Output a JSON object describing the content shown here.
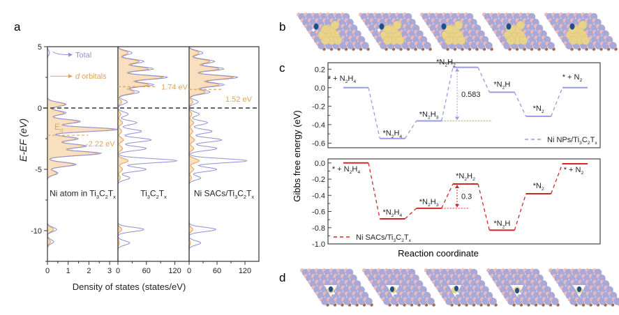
{
  "panel_labels": {
    "a": "a",
    "b": "b",
    "c": "c",
    "d": "d"
  },
  "colors": {
    "total": "#8f8fd6",
    "d_orbitals": "#e0a35a",
    "d_fill": "#f8dfc0",
    "ni_nps": "#9a9ae0",
    "ni_sacs": "#d02828",
    "fermi": "#333333",
    "axis": "#333333",
    "metal_blue": "#a9a9d8",
    "metal_pink": "#f0b9b9",
    "carbon": "#a86a44",
    "cluster": "#e8d38a",
    "nitrogen": "#1f4e8c"
  },
  "chart_data": [
    {
      "id": "a",
      "type": "area",
      "title": "",
      "ylabel": "E-E_F (eV)",
      "xlabel": "Density of states (states/eV)",
      "ylim": [
        -12.5,
        5
      ],
      "yticks": [
        5,
        0,
        -5,
        -10
      ],
      "yticks_minor": [
        2.5,
        -2.5,
        -7.5,
        -12.5
      ],
      "fermi_level": 0,
      "legend": [
        {
          "label": "Total",
          "style": "solid",
          "color_key": "total"
        },
        {
          "label": "d orbitals",
          "style": "filled",
          "color_key": "d_orbitals"
        }
      ],
      "subpanels": [
        {
          "name": "Ni atom in Ti3C2Tx",
          "label_main": "Ni atom in Ti",
          "label_parts": [
            "Ni atom in Ti",
            "3",
            "C",
            "2",
            "T",
            "x"
          ],
          "xlim": [
            0,
            3.4
          ],
          "xticks": [
            0,
            1,
            2,
            3
          ],
          "d_band_center": -2.22,
          "d_band_label": "-2.22 eV",
          "ed_label": "E",
          "ed_sub": "d",
          "total_peaks": [
            [
              4.5,
              0.1
            ],
            [
              0.3,
              0.9
            ],
            [
              -0.4,
              0.9
            ],
            [
              -1.1,
              1.6
            ],
            [
              -1.75,
              3.4
            ],
            [
              -2.5,
              1.5
            ],
            [
              -3.1,
              1.9
            ],
            [
              -3.7,
              2.6
            ],
            [
              -4.6,
              1.4
            ],
            [
              -5.3,
              0.5
            ],
            [
              -9.9,
              0.45
            ],
            [
              -10.9,
              0.3
            ]
          ],
          "d_peaks": [
            [
              0.3,
              0.85
            ],
            [
              -0.4,
              0.8
            ],
            [
              -1.1,
              1.5
            ],
            [
              -1.75,
              3.25
            ],
            [
              -2.5,
              1.4
            ],
            [
              -3.1,
              1.8
            ],
            [
              -3.7,
              2.45
            ],
            [
              -4.6,
              1.3
            ],
            [
              -5.3,
              0.45
            ],
            [
              -9.9,
              0.3
            ],
            [
              -10.9,
              0.15
            ]
          ]
        },
        {
          "name": "Ti3C2Tx",
          "label_parts": [
            "Ti",
            "3",
            "C",
            "2",
            "T",
            "x"
          ],
          "xlim": [
            0,
            150
          ],
          "xticks": [
            0,
            60,
            120
          ],
          "d_band_center": 1.74,
          "d_band_label": "1.74 eV",
          "total_peaks": [
            [
              4.5,
              30
            ],
            [
              3.8,
              55
            ],
            [
              3.2,
              75
            ],
            [
              2.5,
              105
            ],
            [
              1.9,
              75
            ],
            [
              1.3,
              45
            ],
            [
              0.5,
              20
            ],
            [
              -0.5,
              22
            ],
            [
              -1.2,
              40
            ],
            [
              -1.9,
              50
            ],
            [
              -2.6,
              70
            ],
            [
              -3.3,
              60
            ],
            [
              -4.3,
              125
            ],
            [
              -5.0,
              60
            ],
            [
              -5.7,
              25
            ],
            [
              -9.9,
              55
            ],
            [
              -11.0,
              25
            ]
          ],
          "d_peaks": [
            [
              4.5,
              22
            ],
            [
              3.8,
              45
            ],
            [
              3.2,
              65
            ],
            [
              2.5,
              95
            ],
            [
              1.9,
              65
            ],
            [
              1.3,
              35
            ],
            [
              0.5,
              8
            ],
            [
              -0.5,
              6
            ],
            [
              -1.2,
              10
            ],
            [
              -1.9,
              8
            ],
            [
              -2.6,
              12
            ],
            [
              -3.3,
              10
            ],
            [
              -4.3,
              22
            ],
            [
              -5.0,
              10
            ],
            [
              -5.7,
              5
            ],
            [
              -9.9,
              8
            ],
            [
              -11.0,
              3
            ]
          ]
        },
        {
          "name": "Ni SACs/Ti3C2Tx",
          "label_parts": [
            "Ni SACs/Ti",
            "3",
            "C",
            "2",
            "T",
            "x"
          ],
          "xlim": [
            0,
            150
          ],
          "xticks": [
            0,
            60,
            120
          ],
          "d_band_center": 1.52,
          "d_band_label": "1.52 eV",
          "total_peaks": [
            [
              4.5,
              30
            ],
            [
              3.8,
              55
            ],
            [
              3.2,
              75
            ],
            [
              2.5,
              105
            ],
            [
              1.9,
              75
            ],
            [
              1.3,
              45
            ],
            [
              0.5,
              20
            ],
            [
              -0.5,
              22
            ],
            [
              -1.2,
              40
            ],
            [
              -1.9,
              50
            ],
            [
              -2.6,
              70
            ],
            [
              -3.3,
              60
            ],
            [
              -4.3,
              125
            ],
            [
              -5.0,
              60
            ],
            [
              -5.7,
              25
            ],
            [
              -9.9,
              58
            ],
            [
              -11.0,
              25
            ]
          ],
          "d_peaks": [
            [
              4.5,
              22
            ],
            [
              3.8,
              45
            ],
            [
              3.2,
              65
            ],
            [
              2.5,
              95
            ],
            [
              1.9,
              65
            ],
            [
              1.3,
              35
            ],
            [
              0.5,
              8
            ],
            [
              -0.5,
              6
            ],
            [
              -1.2,
              10
            ],
            [
              -1.9,
              8
            ],
            [
              -2.6,
              12
            ],
            [
              -3.3,
              10
            ],
            [
              -4.3,
              22
            ],
            [
              -5.0,
              10
            ],
            [
              -5.7,
              5
            ],
            [
              -9.9,
              8
            ],
            [
              -11.0,
              3
            ]
          ]
        }
      ]
    },
    {
      "id": "c-top",
      "type": "line",
      "series_name": "Ni NPs/Ti3C2Tx",
      "legend_parts": [
        "Ni NPs/Ti",
        "3",
        "C",
        "2",
        "T",
        "x"
      ],
      "legend_position": "bottom-right",
      "ylim": [
        -0.65,
        0.27
      ],
      "yticks": [
        0.2,
        0.0,
        -0.2,
        -0.4,
        -0.6
      ],
      "ytick_labels": [
        "0.2",
        "0.0",
        "-0.2",
        "-0.4",
        "-0.6"
      ],
      "steps": [
        {
          "species": "* + N2H4",
          "label_parts": [
            "* + N",
            "2",
            "H",
            "4"
          ],
          "value": 0.0
        },
        {
          "species": "*N2H4",
          "label_parts": [
            "*N",
            "2",
            "H",
            "4"
          ],
          "value": -0.55
        },
        {
          "species": "*N2H3",
          "label_parts": [
            "*N",
            "2",
            "H",
            "3"
          ],
          "value": -0.36
        },
        {
          "species": "*N2H2",
          "label_parts": [
            "*N",
            "2",
            "H",
            "2"
          ],
          "value": 0.22
        },
        {
          "species": "*N2H",
          "label_parts": [
            "*N",
            "2",
            "H"
          ],
          "value": -0.05
        },
        {
          "species": "*N2",
          "label_parts": [
            "*N",
            "2"
          ],
          "value": -0.31
        },
        {
          "species": "* + N2",
          "label_parts": [
            "* + N",
            "2"
          ],
          "value": 0.0
        }
      ],
      "barrier": {
        "value": 0.583,
        "label": "0.583",
        "from_step": 2,
        "to_step": 3
      }
    },
    {
      "id": "c-bottom",
      "type": "line",
      "series_name": "Ni SACs/Ti3C2Tx",
      "legend_parts": [
        "Ni SACs/Ti",
        "3",
        "C",
        "2",
        "T",
        "x"
      ],
      "legend_position": "bottom-left",
      "ylim": [
        -1.0,
        0.05
      ],
      "yticks": [
        0.0,
        -0.2,
        -0.4,
        -0.6,
        -0.8,
        -1.0
      ],
      "ytick_labels": [
        "0.0",
        "-0.2",
        "-0.4",
        "-0.6",
        "-0.8",
        "-1.0"
      ],
      "steps": [
        {
          "species": "* + N2H4",
          "label_parts": [
            "* + N",
            "2",
            "H",
            "4"
          ],
          "value": 0.0
        },
        {
          "species": "*N2H4",
          "label_parts": [
            "*N",
            "2",
            "H",
            "4"
          ],
          "value": -0.69
        },
        {
          "species": "*N2H3",
          "label_parts": [
            "*N",
            "2",
            "H",
            "3"
          ],
          "value": -0.56
        },
        {
          "species": "*N2H2",
          "label_parts": [
            "*N",
            "2",
            "H",
            "2"
          ],
          "value": -0.26
        },
        {
          "species": "*N2H",
          "label_parts": [
            "*N",
            "2",
            "H"
          ],
          "value": -0.83
        },
        {
          "species": "*N2",
          "label_parts": [
            "*N",
            "2"
          ],
          "value": -0.38
        },
        {
          "species": "* + N2",
          "label_parts": [
            "* + N",
            "2"
          ],
          "value": -0.01
        }
      ],
      "barrier": {
        "value": 0.3,
        "label": "0.3",
        "from_step": 2,
        "to_step": 3
      }
    }
  ],
  "panel_c": {
    "ylabel": "Gibbs free energy (eV)",
    "xlabel": "Reaction coordinate"
  },
  "panel_b": {
    "structures": [
      "N2H4 on Ni NP",
      "N2H3 on Ni NP",
      "N2H2 on Ni NP",
      "N2H on Ni NP",
      "N2 on Ni NP"
    ]
  },
  "panel_d": {
    "structures": [
      "N2H4 on Ni SAC",
      "N2H3 on Ni SAC",
      "N2H2 on Ni SAC",
      "N2H on Ni SAC",
      "N2 on Ni SAC"
    ]
  }
}
